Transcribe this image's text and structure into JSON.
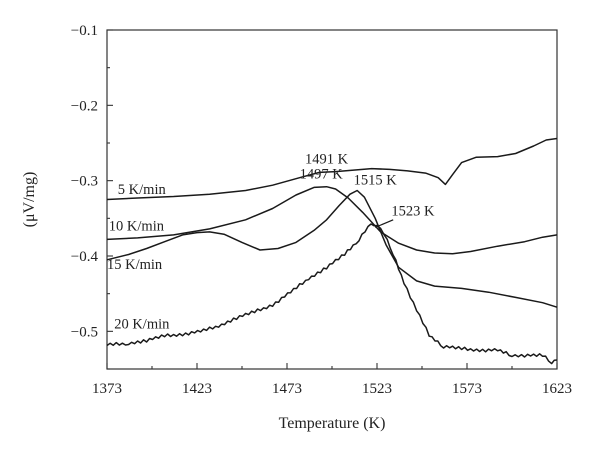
{
  "chart_data": {
    "type": "line",
    "xlabel": "Temperature (K)",
    "ylabel": "(μV/mg)",
    "xlim": [
      1373,
      1623
    ],
    "ylim": [
      -0.55,
      -0.1
    ],
    "y_inverted": true,
    "x_ticks": [
      1373,
      1423,
      1473,
      1523,
      1573,
      1623
    ],
    "y_ticks": [
      -0.1,
      -0.2,
      -0.3,
      -0.4,
      -0.5
    ],
    "y_tick_labels": [
      "−0.1",
      "−0.2",
      "−0.3",
      "−0.4",
      "−0.5"
    ],
    "x_tick_labels": [
      "1373",
      "1423",
      "1473",
      "1523",
      "1573",
      "1623"
    ],
    "grid": false,
    "series": [
      {
        "name": "5 K/min",
        "x": [
          1373,
          1390,
          1410,
          1430,
          1450,
          1465,
          1480,
          1491,
          1500,
          1510,
          1520,
          1530,
          1540,
          1550,
          1557,
          1561,
          1565,
          1570,
          1578,
          1590,
          1600,
          1610,
          1617,
          1623
        ],
        "y": [
          -0.325,
          -0.323,
          -0.321,
          -0.318,
          -0.313,
          -0.306,
          -0.296,
          -0.289,
          -0.288,
          -0.286,
          -0.284,
          -0.285,
          -0.287,
          -0.29,
          -0.296,
          -0.305,
          -0.292,
          -0.276,
          -0.269,
          -0.268,
          -0.264,
          -0.254,
          -0.246,
          -0.244
        ]
      },
      {
        "name": "10 K/min",
        "x": [
          1373,
          1390,
          1410,
          1430,
          1450,
          1465,
          1478,
          1488,
          1495,
          1500,
          1507,
          1515,
          1525,
          1535,
          1545,
          1555,
          1565,
          1575,
          1590,
          1605,
          1615,
          1623
        ],
        "y": [
          -0.378,
          -0.376,
          -0.372,
          -0.364,
          -0.352,
          -0.337,
          -0.319,
          -0.309,
          -0.308,
          -0.311,
          -0.323,
          -0.342,
          -0.368,
          -0.383,
          -0.392,
          -0.396,
          -0.397,
          -0.394,
          -0.387,
          -0.381,
          -0.375,
          -0.372
        ]
      },
      {
        "name": "15 K/min",
        "x": [
          1373,
          1385,
          1395,
          1405,
          1415,
          1423,
          1430,
          1438,
          1448,
          1458,
          1468,
          1478,
          1488,
          1495,
          1502,
          1508,
          1512,
          1516,
          1522,
          1528,
          1535,
          1545,
          1555,
          1570,
          1585,
          1600,
          1615,
          1623
        ],
        "y": [
          -0.405,
          -0.398,
          -0.39,
          -0.381,
          -0.372,
          -0.369,
          -0.368,
          -0.371,
          -0.382,
          -0.392,
          -0.39,
          -0.382,
          -0.366,
          -0.352,
          -0.333,
          -0.318,
          -0.313,
          -0.322,
          -0.35,
          -0.385,
          -0.415,
          -0.433,
          -0.44,
          -0.443,
          -0.448,
          -0.455,
          -0.462,
          -0.468
        ]
      },
      {
        "name": "20 K/min",
        "x": [
          1373,
          1385,
          1395,
          1405,
          1415,
          1425,
          1435,
          1445,
          1455,
          1465,
          1475,
          1485,
          1495,
          1505,
          1513,
          1518,
          1523,
          1527,
          1532,
          1538,
          1545,
          1552,
          1560,
          1570,
          1580,
          1590,
          1598,
          1605,
          1615,
          1620,
          1623
        ],
        "y": [
          -0.518,
          -0.516,
          -0.512,
          -0.506,
          -0.504,
          -0.5,
          -0.493,
          -0.482,
          -0.474,
          -0.465,
          -0.448,
          -0.43,
          -0.415,
          -0.398,
          -0.378,
          -0.36,
          -0.358,
          -0.37,
          -0.398,
          -0.435,
          -0.472,
          -0.505,
          -0.52,
          -0.523,
          -0.525,
          -0.525,
          -0.532,
          -0.532,
          -0.532,
          -0.541,
          -0.538
        ]
      }
    ],
    "annotations": [
      {
        "text": "5 K/min",
        "x": 1379,
        "y": -0.318
      },
      {
        "text": "10 K/min",
        "x": 1374,
        "y": -0.366
      },
      {
        "text": "15 K/min",
        "x": 1373,
        "y": -0.417
      },
      {
        "text": "20 K/min",
        "x": 1377,
        "y": -0.496
      },
      {
        "text": "1491 K",
        "x": 1483,
        "y": -0.277
      },
      {
        "text": "1497 K",
        "x": 1480,
        "y": -0.297
      },
      {
        "text": "1515 K",
        "x": 1510,
        "y": -0.305
      },
      {
        "text": "1523 K",
        "x": 1531,
        "y": -0.346
      }
    ]
  }
}
